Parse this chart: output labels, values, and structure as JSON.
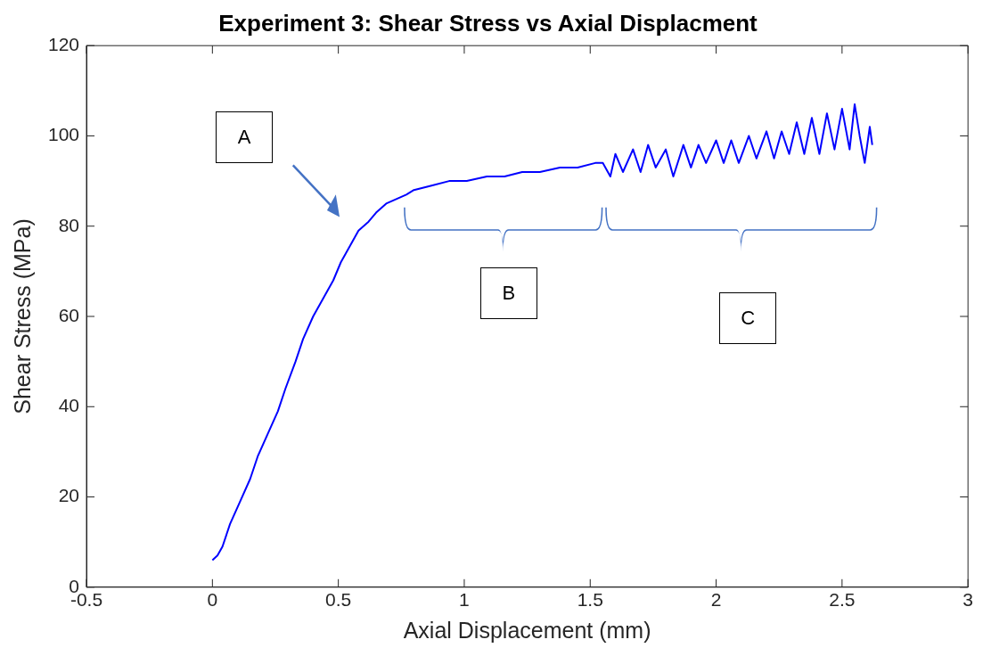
{
  "chart_data": {
    "type": "line",
    "title": "Experiment 3: Shear Stress vs Axial Displacment",
    "xlabel": "Axial Displacement (mm)",
    "ylabel": "Shear Stress (MPa)",
    "xlim": [
      -0.5,
      3
    ],
    "xticks": [
      -0.5,
      0,
      0.5,
      1,
      1.5,
      2,
      2.5,
      3
    ],
    "ylim": [
      0,
      120
    ],
    "yticks": [
      0,
      20,
      40,
      60,
      80,
      100,
      120
    ],
    "grid": false,
    "legend": false,
    "marker": "none",
    "line_style": "solid",
    "annotations": [
      "A",
      "B",
      "C"
    ],
    "series": [
      {
        "color": "#0000ff",
        "x": [
          0,
          0.02,
          0.04,
          0.07,
          0.11,
          0.15,
          0.18,
          0.22,
          0.26,
          0.29,
          0.33,
          0.36,
          0.4,
          0.44,
          0.48,
          0.51,
          0.55,
          0.58,
          0.62,
          0.65,
          0.69,
          0.73,
          0.77,
          0.8,
          0.87,
          0.94,
          1.01,
          1.09,
          1.16,
          1.23,
          1.3,
          1.38,
          1.45,
          1.52,
          1.55,
          1.58,
          1.6,
          1.63,
          1.67,
          1.7,
          1.73,
          1.76,
          1.8,
          1.83,
          1.87,
          1.9,
          1.93,
          1.96,
          2,
          2.03,
          2.06,
          2.09,
          2.13,
          2.16,
          2.2,
          2.23,
          2.26,
          2.29,
          2.32,
          2.35,
          2.38,
          2.41,
          2.44,
          2.47,
          2.5,
          2.53,
          2.55,
          2.57,
          2.59,
          2.61,
          2.62
        ],
        "values": [
          6,
          7,
          9,
          14,
          19,
          24,
          29,
          34,
          39,
          44,
          50,
          55,
          60,
          64,
          68,
          72,
          76,
          79,
          81,
          83,
          85,
          86,
          87,
          88,
          89,
          90,
          90,
          91,
          91,
          92,
          92,
          93,
          93,
          94,
          94,
          91,
          96,
          92,
          97,
          92,
          98,
          93,
          97,
          91,
          98,
          93,
          98,
          94,
          99,
          94,
          99,
          94,
          100,
          95,
          101,
          95,
          101,
          96,
          103,
          96,
          104,
          96,
          105,
          97,
          106,
          97,
          107,
          100,
          94,
          102,
          98
        ]
      }
    ]
  }
}
